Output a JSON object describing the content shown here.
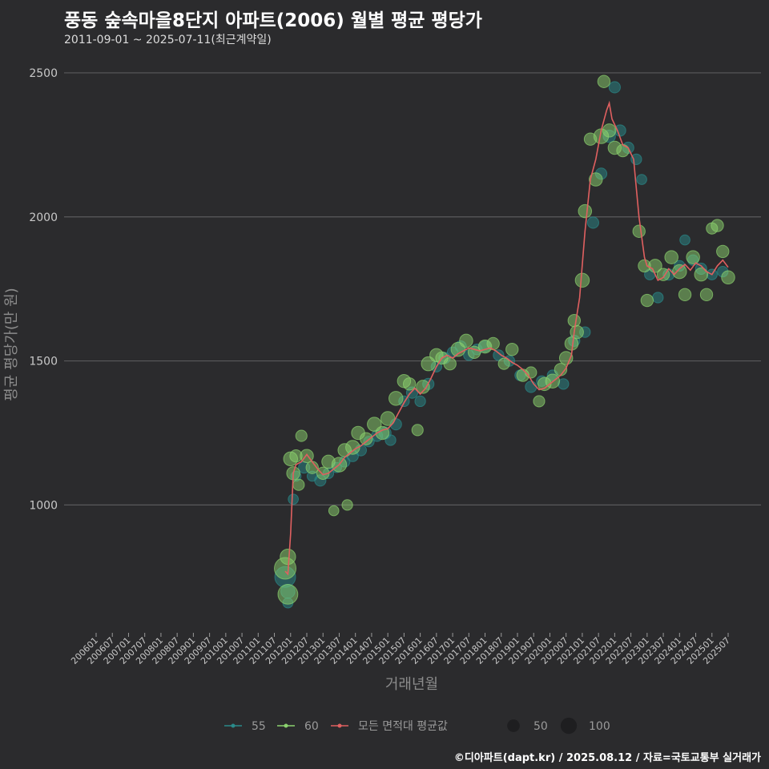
{
  "header": {
    "title": "풍동 숲속마을8단지 아파트(2006) 월별 평균 평당가",
    "subtitle": "2011-09-01 ~ 2025-07-11(최근계약일)"
  },
  "caption": "©디아파트(dapt.kr) / 2025.08.12 / 자료=국토교통부 실거래가",
  "chart_data": {
    "type": "scatter",
    "title": "풍동 숲속마을8단지 아파트(2006) 월별 평균 평당가",
    "xlabel": "거래년월",
    "ylabel": "평균 평당가(만 원)",
    "ylim": [
      570,
      2600
    ],
    "yticks": [
      1000,
      1500,
      2000,
      2500
    ],
    "xticks": [
      "200601",
      "200607",
      "200701",
      "200707",
      "200801",
      "200807",
      "200901",
      "200907",
      "201001",
      "201007",
      "201101",
      "201107",
      "201201",
      "201207",
      "201301",
      "201307",
      "201401",
      "201407",
      "201501",
      "201507",
      "201601",
      "201607",
      "201701",
      "201707",
      "201801",
      "201807",
      "201901",
      "201907",
      "202001",
      "202007",
      "202101",
      "202107",
      "202201",
      "202207",
      "202301",
      "202307",
      "202401",
      "202407",
      "202501",
      "202507"
    ],
    "grid": true,
    "legend_position": "bottom",
    "legend": {
      "series": [
        {
          "label": "55",
          "color": "#2a8a8a"
        },
        {
          "label": "60",
          "color": "#8bd26e"
        },
        {
          "label": "모든 면적대 평균값",
          "color": "#e06060"
        }
      ],
      "sizes": [
        {
          "label": "50",
          "value": 50
        },
        {
          "label": "100",
          "value": 100
        }
      ]
    },
    "series": [
      {
        "name": "55",
        "color": "#2a8a8a",
        "points": [
          [
            "2011-11",
            750,
            90
          ],
          [
            "2011-12",
            700,
            30
          ],
          [
            "2011-12",
            660,
            10
          ],
          [
            "2012-02",
            1020,
            10
          ],
          [
            "2012-03",
            1100,
            10
          ],
          [
            "2012-06",
            1130,
            15
          ],
          [
            "2012-09",
            1100,
            10
          ],
          [
            "2012-12",
            1085,
            15
          ],
          [
            "2013-03",
            1110,
            12
          ],
          [
            "2013-06",
            1130,
            10
          ],
          [
            "2013-09",
            1150,
            12
          ],
          [
            "2013-12",
            1170,
            15
          ],
          [
            "2014-03",
            1190,
            15
          ],
          [
            "2014-06",
            1220,
            12
          ],
          [
            "2014-09",
            1240,
            15
          ],
          [
            "2014-12",
            1250,
            18
          ],
          [
            "2015-02",
            1225,
            12
          ],
          [
            "2015-04",
            1280,
            15
          ],
          [
            "2015-07",
            1360,
            12
          ],
          [
            "2015-10",
            1390,
            15
          ],
          [
            "2016-01",
            1360,
            12
          ],
          [
            "2016-04",
            1420,
            15
          ],
          [
            "2016-07",
            1480,
            12
          ],
          [
            "2016-10",
            1510,
            15
          ],
          [
            "2017-01",
            1530,
            12
          ],
          [
            "2017-04",
            1550,
            15
          ],
          [
            "2017-07",
            1520,
            12
          ],
          [
            "2017-10",
            1540,
            12
          ],
          [
            "2018-01",
            1550,
            15
          ],
          [
            "2018-06",
            1520,
            12
          ],
          [
            "2018-10",
            1500,
            12
          ],
          [
            "2019-02",
            1450,
            12
          ],
          [
            "2019-06",
            1410,
            15
          ],
          [
            "2019-10",
            1430,
            12
          ],
          [
            "2020-02",
            1450,
            12
          ],
          [
            "2020-06",
            1420,
            12
          ],
          [
            "2020-10",
            1570,
            15
          ],
          [
            "2021-02",
            1600,
            12
          ],
          [
            "2021-05",
            1980,
            15
          ],
          [
            "2021-08",
            2150,
            15
          ],
          [
            "2021-11",
            2280,
            20
          ],
          [
            "2022-01",
            2450,
            15
          ],
          [
            "2022-03",
            2300,
            15
          ],
          [
            "2022-06",
            2240,
            15
          ],
          [
            "2022-09",
            2200,
            12
          ],
          [
            "2022-11",
            2130,
            10
          ],
          [
            "2023-02",
            1800,
            12
          ],
          [
            "2023-05",
            1720,
            12
          ],
          [
            "2023-09",
            1800,
            15
          ],
          [
            "2024-01",
            1830,
            12
          ],
          [
            "2024-03",
            1920,
            10
          ],
          [
            "2024-06",
            1850,
            12
          ],
          [
            "2024-09",
            1820,
            15
          ],
          [
            "2025-01",
            1800,
            12
          ],
          [
            "2025-05",
            1810,
            12
          ]
        ]
      },
      {
        "name": "60",
        "color": "#8bd26e",
        "points": [
          [
            "2011-11",
            780,
            100
          ],
          [
            "2011-12",
            820,
            40
          ],
          [
            "2011-12",
            690,
            80
          ],
          [
            "2012-01",
            1160,
            30
          ],
          [
            "2012-02",
            1110,
            25
          ],
          [
            "2012-03",
            1170,
            20
          ],
          [
            "2012-04",
            1070,
            15
          ],
          [
            "2012-05",
            1240,
            15
          ],
          [
            "2012-07",
            1170,
            25
          ],
          [
            "2012-09",
            1130,
            20
          ],
          [
            "2013-01",
            1110,
            20
          ],
          [
            "2013-03",
            1150,
            25
          ],
          [
            "2013-05",
            980,
            10
          ],
          [
            "2013-07",
            1140,
            35
          ],
          [
            "2013-09",
            1190,
            25
          ],
          [
            "2013-10",
            1000,
            12
          ],
          [
            "2013-12",
            1200,
            30
          ],
          [
            "2014-02",
            1250,
            25
          ],
          [
            "2014-05",
            1230,
            20
          ],
          [
            "2014-08",
            1280,
            30
          ],
          [
            "2014-11",
            1250,
            25
          ],
          [
            "2015-01",
            1300,
            30
          ],
          [
            "2015-04",
            1370,
            30
          ],
          [
            "2015-07",
            1430,
            25
          ],
          [
            "2015-09",
            1420,
            20
          ],
          [
            "2015-12",
            1260,
            15
          ],
          [
            "2016-02",
            1410,
            25
          ],
          [
            "2016-04",
            1490,
            30
          ],
          [
            "2016-07",
            1520,
            25
          ],
          [
            "2016-09",
            1510,
            20
          ],
          [
            "2016-12",
            1490,
            20
          ],
          [
            "2017-03",
            1540,
            30
          ],
          [
            "2017-06",
            1570,
            25
          ],
          [
            "2017-09",
            1530,
            20
          ],
          [
            "2018-01",
            1550,
            25
          ],
          [
            "2018-04",
            1560,
            20
          ],
          [
            "2018-08",
            1490,
            15
          ],
          [
            "2018-11",
            1540,
            20
          ],
          [
            "2019-03",
            1450,
            20
          ],
          [
            "2019-06",
            1460,
            15
          ],
          [
            "2019-09",
            1360,
            15
          ],
          [
            "2019-11",
            1420,
            25
          ],
          [
            "2020-02",
            1430,
            30
          ],
          [
            "2020-05",
            1470,
            20
          ],
          [
            "2020-07",
            1510,
            25
          ],
          [
            "2020-09",
            1560,
            25
          ],
          [
            "2020-10",
            1640,
            20
          ],
          [
            "2020-11",
            1600,
            25
          ],
          [
            "2021-01",
            1780,
            30
          ],
          [
            "2021-02",
            2020,
            25
          ],
          [
            "2021-04",
            2270,
            20
          ],
          [
            "2021-06",
            2130,
            25
          ],
          [
            "2021-08",
            2280,
            35
          ],
          [
            "2021-09",
            2470,
            20
          ],
          [
            "2021-11",
            2300,
            25
          ],
          [
            "2022-01",
            2240,
            25
          ],
          [
            "2022-04",
            2230,
            20
          ],
          [
            "2022-10",
            1950,
            20
          ],
          [
            "2022-12",
            1830,
            20
          ],
          [
            "2023-01",
            1710,
            20
          ],
          [
            "2023-04",
            1830,
            25
          ],
          [
            "2023-07",
            1800,
            20
          ],
          [
            "2023-10",
            1860,
            25
          ],
          [
            "2024-01",
            1810,
            30
          ],
          [
            "2024-03",
            1730,
            20
          ],
          [
            "2024-06",
            1860,
            25
          ],
          [
            "2024-09",
            1800,
            25
          ],
          [
            "2024-11",
            1730,
            20
          ],
          [
            "2025-01",
            1960,
            15
          ],
          [
            "2025-03",
            1970,
            20
          ],
          [
            "2025-05",
            1880,
            20
          ],
          [
            "2025-07",
            1790,
            25
          ]
        ]
      },
      {
        "name": "모든 면적대 평균값",
        "type": "line",
        "color": "#e06060",
        "points": [
          [
            "2011-11",
            770
          ],
          [
            "2011-12",
            760
          ],
          [
            "2012-01",
            900
          ],
          [
            "2012-02",
            1110
          ],
          [
            "2012-03",
            1140
          ],
          [
            "2012-05",
            1150
          ],
          [
            "2012-07",
            1175
          ],
          [
            "2012-09",
            1150
          ],
          [
            "2012-11",
            1125
          ],
          [
            "2013-01",
            1105
          ],
          [
            "2013-03",
            1110
          ],
          [
            "2013-05",
            1125
          ],
          [
            "2013-07",
            1140
          ],
          [
            "2013-09",
            1165
          ],
          [
            "2013-11",
            1180
          ],
          [
            "2014-01",
            1195
          ],
          [
            "2014-03",
            1205
          ],
          [
            "2014-05",
            1220
          ],
          [
            "2014-07",
            1235
          ],
          [
            "2014-09",
            1250
          ],
          [
            "2014-11",
            1260
          ],
          [
            "2015-01",
            1265
          ],
          [
            "2015-03",
            1285
          ],
          [
            "2015-05",
            1320
          ],
          [
            "2015-07",
            1355
          ],
          [
            "2015-09",
            1385
          ],
          [
            "2015-11",
            1405
          ],
          [
            "2016-01",
            1385
          ],
          [
            "2016-03",
            1405
          ],
          [
            "2016-05",
            1440
          ],
          [
            "2016-07",
            1480
          ],
          [
            "2016-09",
            1510
          ],
          [
            "2016-11",
            1520
          ],
          [
            "2017-01",
            1510
          ],
          [
            "2017-03",
            1525
          ],
          [
            "2017-05",
            1535
          ],
          [
            "2017-07",
            1545
          ],
          [
            "2017-09",
            1540
          ],
          [
            "2017-11",
            1535
          ],
          [
            "2018-01",
            1540
          ],
          [
            "2018-03",
            1545
          ],
          [
            "2018-05",
            1535
          ],
          [
            "2018-07",
            1520
          ],
          [
            "2018-09",
            1510
          ],
          [
            "2018-11",
            1495
          ],
          [
            "2019-01",
            1485
          ],
          [
            "2019-03",
            1470
          ],
          [
            "2019-05",
            1450
          ],
          [
            "2019-07",
            1420
          ],
          [
            "2019-09",
            1400
          ],
          [
            "2019-11",
            1405
          ],
          [
            "2020-01",
            1420
          ],
          [
            "2020-03",
            1435
          ],
          [
            "2020-05",
            1450
          ],
          [
            "2020-07",
            1475
          ],
          [
            "2020-09",
            1520
          ],
          [
            "2020-10",
            1600
          ],
          [
            "2020-12",
            1720
          ],
          [
            "2021-02",
            1950
          ],
          [
            "2021-04",
            2130
          ],
          [
            "2021-06",
            2200
          ],
          [
            "2021-08",
            2300
          ],
          [
            "2021-10",
            2370
          ],
          [
            "2021-11",
            2395
          ],
          [
            "2021-12",
            2340
          ],
          [
            "2022-02",
            2300
          ],
          [
            "2022-04",
            2250
          ],
          [
            "2022-06",
            2240
          ],
          [
            "2022-08",
            2200
          ],
          [
            "2022-10",
            2000
          ],
          [
            "2022-12",
            1860
          ],
          [
            "2023-01",
            1830
          ],
          [
            "2023-03",
            1820
          ],
          [
            "2023-05",
            1780
          ],
          [
            "2023-07",
            1790
          ],
          [
            "2023-09",
            1820
          ],
          [
            "2023-11",
            1800
          ],
          [
            "2024-01",
            1820
          ],
          [
            "2024-03",
            1835
          ],
          [
            "2024-05",
            1815
          ],
          [
            "2024-07",
            1840
          ],
          [
            "2024-09",
            1830
          ],
          [
            "2024-11",
            1810
          ],
          [
            "2025-01",
            1800
          ],
          [
            "2025-03",
            1830
          ],
          [
            "2025-05",
            1850
          ],
          [
            "2025-07",
            1825
          ]
        ]
      }
    ]
  }
}
